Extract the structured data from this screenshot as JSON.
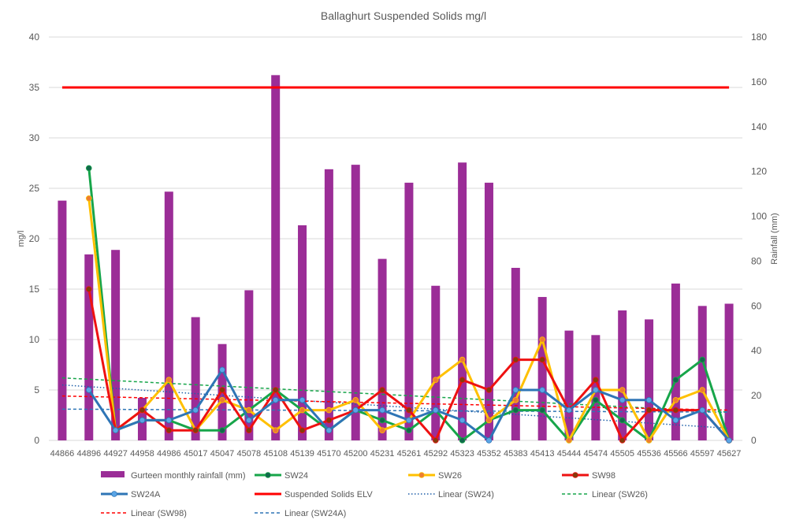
{
  "chart_data": {
    "type": "bar+line",
    "title": "Ballaghurt Suspended Solids mg/l",
    "ylabel": "mg/l",
    "y2label": "Rainfall (mm)",
    "ylim": [
      0,
      40
    ],
    "y2lim": [
      0,
      180
    ],
    "yticks": [
      "0",
      "5",
      "10",
      "15",
      "20",
      "25",
      "30",
      "35",
      "40"
    ],
    "y2ticks": [
      "0",
      "20",
      "40",
      "60",
      "80",
      "100",
      "120",
      "140",
      "160",
      "180"
    ],
    "categories": [
      "44866",
      "44896",
      "44927",
      "44958",
      "44986",
      "45017",
      "45047",
      "45078",
      "45108",
      "45139",
      "45170",
      "45200",
      "45231",
      "45261",
      "45292",
      "45323",
      "45352",
      "45383",
      "45413",
      "45444",
      "45474",
      "45505",
      "45536",
      "45566",
      "45597",
      "45627"
    ],
    "bars": {
      "name": "Gurteen monthly rainfall (mm)",
      "color": "#9b2d97",
      "axis": "right",
      "values": [
        107,
        83,
        85,
        19,
        111,
        55,
        43,
        67,
        163,
        96,
        121,
        123,
        81,
        115,
        69,
        124,
        115,
        77,
        64,
        49,
        47,
        58,
        54,
        70,
        60,
        61
      ]
    },
    "series": [
      {
        "name": "SW24",
        "color": "#17a54a",
        "marker": "#11694b",
        "width": 3,
        "values": [
          null,
          27,
          1,
          2,
          2,
          1,
          1,
          3,
          5,
          3,
          1,
          3,
          2,
          1,
          3,
          0,
          2,
          3,
          3,
          0,
          4,
          2,
          0,
          6,
          8,
          0
        ]
      },
      {
        "name": "SW26",
        "color": "#ffc000",
        "marker": "#ed7d31",
        "width": 3,
        "values": [
          null,
          24,
          1,
          3,
          6,
          1,
          4,
          3,
          1,
          3,
          3,
          4,
          1,
          2,
          6,
          8,
          2,
          4,
          10,
          0,
          5,
          5,
          0,
          4,
          5,
          0
        ]
      },
      {
        "name": "SW98",
        "color": "#ee1111",
        "marker": "#843c0c",
        "width": 3,
        "values": [
          null,
          15,
          1,
          3,
          1,
          1,
          5,
          1,
          5,
          1,
          2,
          3,
          5,
          3,
          0,
          6,
          5,
          8,
          8,
          3,
          6,
          0,
          3,
          3,
          3,
          0
        ]
      },
      {
        "name": "SW24A",
        "color": "#2e75b6",
        "marker": "#5aa5e6",
        "width": 3,
        "values": [
          null,
          5,
          1,
          2,
          2,
          3,
          7,
          2,
          4,
          4,
          1,
          3,
          3,
          2,
          3,
          2,
          0,
          5,
          5,
          3,
          5,
          4,
          4,
          2,
          3,
          0
        ]
      }
    ],
    "elv": {
      "name": "Suspended Solids ELV",
      "color": "#ff0000",
      "value": 35
    },
    "trendlines": [
      {
        "name": "Linear (SW24)",
        "color": "#1f5fa8",
        "style": "dotted",
        "start": 5.5,
        "end": 1.2
      },
      {
        "name": "Linear (SW26)",
        "color": "#17a54a",
        "style": "dashed",
        "start": 6.2,
        "end": 2.8
      },
      {
        "name": "Linear (SW98)",
        "color": "#ff0000",
        "style": "dashed",
        "start": 4.4,
        "end": 3.0
      },
      {
        "name": "Linear (SW24A)",
        "color": "#2e75b6",
        "style": "dashed",
        "start": 3.1,
        "end": 2.8
      }
    ],
    "legend_position": "bottom"
  }
}
